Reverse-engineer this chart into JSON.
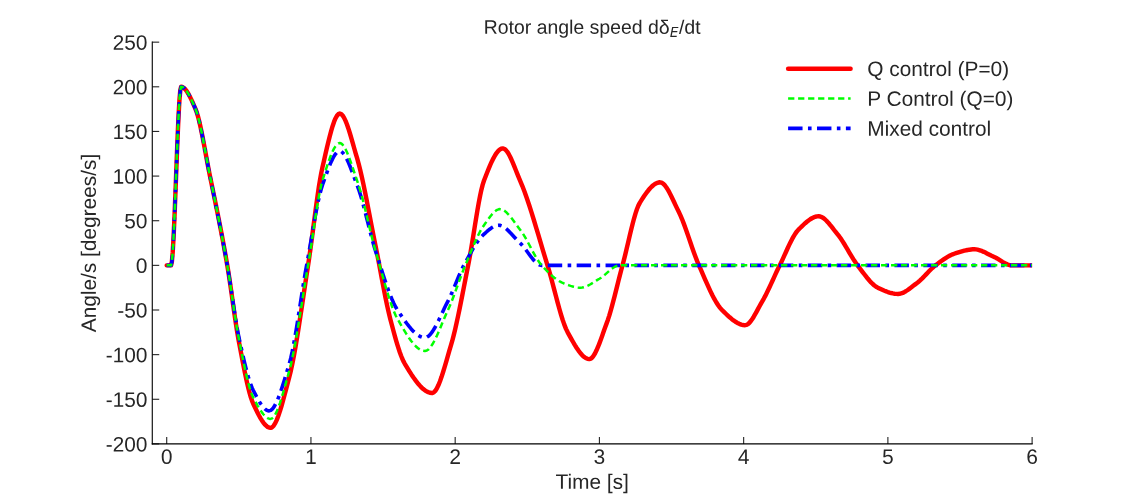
{
  "chart_data": {
    "type": "line",
    "title": "Rotor angle speed dδ$_{E}$/dt",
    "xlabel": "Time [s]",
    "ylabel": "Angle/s [degrees/s]",
    "xlim": [
      -0.1,
      6
    ],
    "xticks": [
      0,
      1,
      2,
      3,
      4,
      5,
      6
    ],
    "ylim": [
      -200,
      250
    ],
    "yticks": [
      -200,
      -150,
      -100,
      -50,
      0,
      50,
      100,
      150,
      200,
      250
    ],
    "grid": false,
    "legend": "top right",
    "series": [
      {
        "name": "Q control (P=0)",
        "color": "#ff0000",
        "line_style": "solid",
        "x": [
          0,
          0.03,
          0.1,
          0.2,
          0.3,
          0.42,
          0.5,
          0.6,
          0.72,
          0.85,
          0.98,
          1.08,
          1.2,
          1.32,
          1.45,
          1.55,
          1.65,
          1.84,
          1.97,
          2.09,
          2.2,
          2.33,
          2.45,
          2.64,
          2.78,
          2.93,
          3.05,
          3.16,
          3.28,
          3.42,
          3.55,
          3.69,
          3.85,
          4.01,
          4.13,
          4.25,
          4.38,
          4.52,
          4.65,
          4.79,
          4.93,
          5.07,
          5.2,
          5.33,
          5.46,
          5.6,
          5.73,
          5.86,
          6
        ],
        "values": [
          0,
          0,
          200,
          175,
          100,
          0,
          -85,
          -155,
          -182,
          -125,
          0,
          110,
          170,
          120,
          20,
          -60,
          -110,
          -143,
          -90,
          0,
          95,
          131,
          95,
          0,
          -75,
          -105,
          -65,
          0,
          70,
          93,
          60,
          0,
          -50,
          -67,
          -40,
          0,
          40,
          55,
          35,
          0,
          -25,
          -32,
          -20,
          0,
          13,
          18,
          10,
          0,
          0
        ]
      },
      {
        "name": "P Control (Q=0)",
        "color": "#00ff00",
        "line_style": "dashed",
        "x": [
          0,
          0.03,
          0.1,
          0.2,
          0.3,
          0.42,
          0.5,
          0.6,
          0.72,
          0.85,
          0.98,
          1.08,
          1.2,
          1.32,
          1.45,
          1.6,
          1.79,
          1.95,
          2.07,
          2.2,
          2.31,
          2.45,
          2.6,
          2.75,
          2.87,
          3.0,
          3.14,
          6
        ],
        "values": [
          0,
          0,
          200,
          175,
          100,
          0,
          -82,
          -148,
          -172,
          -118,
          0,
          95,
          137,
          95,
          15,
          -60,
          -96,
          -50,
          0,
          45,
          63,
          40,
          0,
          -20,
          -25,
          -15,
          0,
          0
        ]
      },
      {
        "name": "Mixed control",
        "color": "#0000ff",
        "line_style": "dashdot",
        "x": [
          0,
          0.03,
          0.1,
          0.2,
          0.3,
          0.42,
          0.5,
          0.6,
          0.71,
          0.85,
          0.97,
          1.08,
          1.2,
          1.32,
          1.45,
          1.6,
          1.79,
          1.95,
          2.06,
          2.2,
          2.3,
          2.45,
          2.6,
          6
        ],
        "values": [
          0,
          0,
          200,
          175,
          100,
          0,
          -80,
          -140,
          -163,
          -110,
          0,
          90,
          128,
          90,
          15,
          -50,
          -81,
          -40,
          0,
          35,
          45,
          25,
          0,
          0
        ]
      }
    ]
  }
}
